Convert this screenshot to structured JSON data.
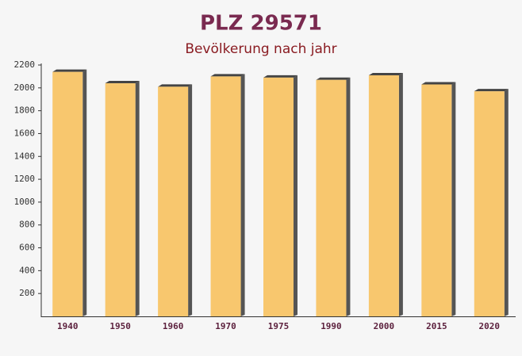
{
  "chart_data": {
    "type": "bar",
    "title": "PLZ 29571",
    "subtitle": "Bevölkerung nach jahr",
    "categories": [
      "1940",
      "1950",
      "1960",
      "1970",
      "1975",
      "1990",
      "2000",
      "2015",
      "2020"
    ],
    "values": [
      2140,
      2040,
      2010,
      2100,
      2090,
      2070,
      2110,
      2030,
      1970
    ],
    "color": "#f8c466",
    "ylim": [
      0,
      2200
    ],
    "yticks": [
      200,
      400,
      600,
      800,
      1000,
      1200,
      1400,
      1600,
      1800,
      2000,
      2200
    ]
  }
}
